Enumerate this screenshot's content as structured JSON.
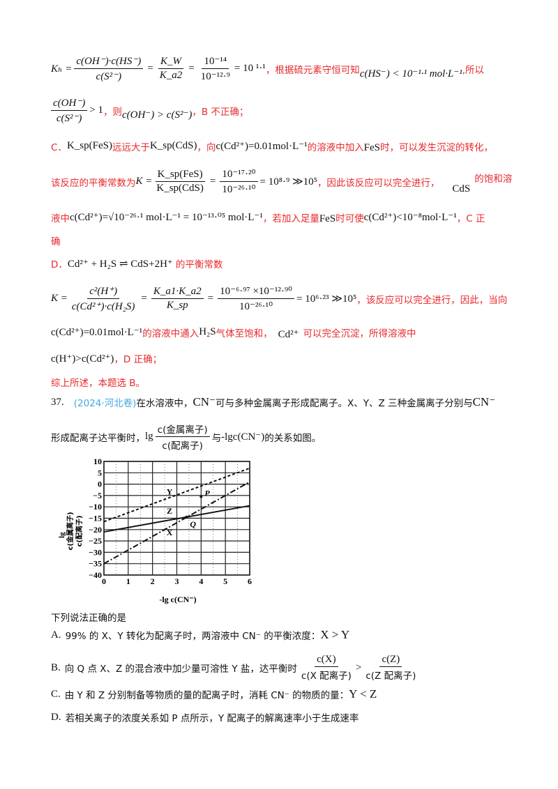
{
  "b_part": {
    "kh_label": "Kₕ =",
    "kh_num": "c(OH⁻)·c(HS⁻)",
    "kh_den": "c(S²⁻)",
    "kw_num": "K_W",
    "kw_den": "K_a2",
    "pow_num": "10⁻¹⁴",
    "pow_den": "10⁻¹²·⁹",
    "result": "= 10 ¹·¹",
    "text1": "，根据硫元素守恒可知",
    "hs_expr": "c(HS⁻) < 10⁻¹·¹ mol·L⁻¹",
    "text2": ",所以",
    "ratio_num": "c(OH⁻)",
    "ratio_den": "c(S²⁻)",
    "gt1": "> 1",
    "text3": "，则",
    "compare": "c(OH⁻) > c(S²⁻)",
    "text4": "，B 不正确；"
  },
  "c_part": {
    "label": "C．",
    "ksp_fes": "K_sp(FeS)",
    "text1": "远远大于",
    "ksp_cds": "K_sp(CdS)",
    "text2": "，向",
    "cd_conc": "c(Cd²⁺)=0.01mol·L⁻¹",
    "text3": "的溶液中加入",
    "fes": "FeS",
    "text4": "时，可以发生沉淀的转化，",
    "text5": "该反应的平衡常数为",
    "k_eq": "K =",
    "k_num": "K_sp(FeS)",
    "k_den": "K_sp(CdS)",
    "p_num": "10⁻¹⁷·²⁰",
    "p_den": "10⁻²⁶·¹⁰",
    "result": "= 10⁸·⁹ ≫10⁵",
    "text6": "，因此该反应可以完全进行，",
    "cds": "CdS",
    "text7": "的饱和溶",
    "text8": "液中",
    "sqrt_expr": "c(Cd²⁺)=√10⁻²⁶·¹ mol·L⁻¹ = 10⁻¹³·⁰⁵ mol·L⁻¹",
    "text9": "，若加入足量",
    "fes2": "FeS",
    "text10": "时可使",
    "limit": "c(Cd²⁺)<10⁻⁸mol·L⁻¹",
    "text11": "，C 正",
    "text12": "确"
  },
  "d_part": {
    "label": "D．",
    "reaction": "Cd²⁺ + H₂S ⇌ CdS+2H⁺",
    "text1": "的平衡常数",
    "k_eq": "K =",
    "k_num": "c²(H⁺)",
    "k_den": "c(Cd²⁺)·c(H₂S)",
    "ka_num": "K_a1·K_a2",
    "ka_den": "K_sp",
    "p_num": "10⁻⁶·⁹⁷ ×10⁻¹²·⁹⁰",
    "p_den": "10⁻²⁶·¹⁰",
    "result": "= 10⁶·²³ ≫10⁵",
    "text2": "，该反应可以完全进行，因此，当向",
    "cd_conc": "c(Cd²⁺)=0.01mol·L⁻¹",
    "text3": "的溶液中通入",
    "h2s": "H₂S",
    "text4": "气体至饱和，",
    "cd_ion": "Cd²⁺",
    "text5": "可以完全沉淀，所得溶液中",
    "compare": "c(H⁺)>c(Cd²⁺)",
    "text6": "，D 正确；",
    "summary": "综上所述，本题选 B。"
  },
  "question": {
    "number": "37.",
    "source": "(2024·河北卷)",
    "text1": "在水溶液中，",
    "cn": "CN⁻",
    "text2": "可与多种金属离子形成配离子。X、Y、Z 三种金属离子分别与",
    "cn2": "CN⁻",
    "text3": "形成配离子达平衡时，",
    "lg": "lg",
    "lg_num": "c(金属离子)",
    "lg_den": "c(配离子)",
    "text4": "与",
    "neg_lg": "-lgc(CN⁻)",
    "text5": "的关系如图。",
    "prompt": "下列说法正确的是",
    "options": [
      {
        "label": "A.",
        "text": "99% 的 X、Y 转化为配离子时，两溶液中 CN⁻ 的平衡浓度：",
        "tail": "X > Y"
      },
      {
        "label": "B.",
        "text": "向 Q 点 X、Z 的混合液中加少量可溶性 Y 盐，达平衡时",
        "f1_num": "c(X)",
        "f1_den": "c(X 配离子)",
        "gt": ">",
        "f2_num": "c(Z)",
        "f2_den": "c(Z 配离子)"
      },
      {
        "label": "C.",
        "text": "由 Y 和 Z 分别制备等物质的量的配离子时，消耗 CN⁻ 的物质的量：",
        "tail": "Y < Z"
      },
      {
        "label": "D.",
        "text": "若相关离子的浓度关系如 P 点所示，Y 配离子的解离速率小于生成速率"
      }
    ]
  },
  "colors": {
    "answer_text": "#e8282c",
    "source_link": "#3fa7e0"
  },
  "chart_data": {
    "type": "line",
    "xlabel": "-lg c(CN⁻)",
    "ylabel_num": "c(金属离子)",
    "ylabel_den": "c(配离子)",
    "ylabel_prefix": "lg",
    "xlim": [
      0,
      6
    ],
    "ylim": [
      -40,
      10
    ],
    "xticks": [
      "0",
      "1",
      "2",
      "3",
      "4",
      "5",
      "6"
    ],
    "yticks": [
      "10",
      "5",
      "0",
      "-5",
      "-10",
      "-15",
      "-20",
      "-25",
      "-30",
      "-35",
      "-40"
    ],
    "grid": true,
    "series": [
      {
        "name": "Y",
        "style": "dashed",
        "x": [
          0,
          6
        ],
        "y": [
          -16.5,
          7
        ]
      },
      {
        "name": "Z",
        "style": "solid",
        "x": [
          0,
          6
        ],
        "y": [
          -21,
          -9.5
        ]
      },
      {
        "name": "X",
        "style": "dashdot",
        "x": [
          0,
          6
        ],
        "y": [
          -35,
          1
        ]
      }
    ],
    "annotations": [
      {
        "text": "P",
        "x": 4.0,
        "y": -5.5
      },
      {
        "text": "Q",
        "x": 3.4,
        "y": -14.5
      }
    ],
    "series_labels": [
      {
        "text": "Y",
        "x": 2.7,
        "y": -4.5
      },
      {
        "text": "Z",
        "x": 2.7,
        "y": -13
      },
      {
        "text": "X",
        "x": 2.7,
        "y": -22.5
      }
    ]
  }
}
